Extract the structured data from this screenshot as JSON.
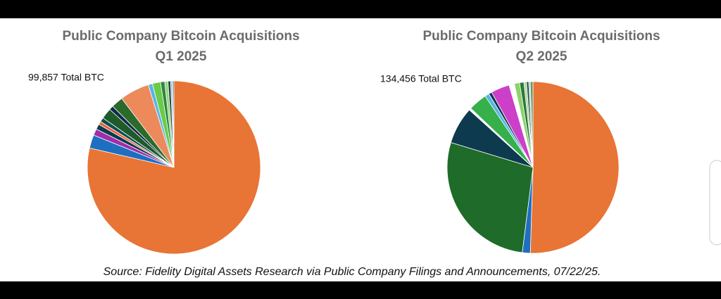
{
  "chart_data": [
    {
      "type": "pie",
      "title": "Public Company Bitcoin Acquisitions",
      "subtitle": "Q1 2025",
      "annotation": "99,857 Total BTC",
      "values": [
        78.6,
        2.5,
        1.2,
        1.0,
        0.6,
        0.8,
        2.0,
        0.8,
        2.2,
        5.5,
        0.8,
        1.5,
        0.8,
        0.6,
        0.5,
        0.4,
        0.2
      ],
      "colors": [
        "#e87435",
        "#1f6fc1",
        "#a02ea8",
        "#0d3b4f",
        "#e8603c",
        "#0a4f4f",
        "#1e5a2a",
        "#102f45",
        "#2a6a2a",
        "#ec8a5c",
        "#5ab4e6",
        "#6acb4a",
        "#2f8a3a",
        "#9ad18a",
        "#1f4f2f",
        "#a8c8e8",
        "#3a3a3a"
      ]
    },
    {
      "type": "pie",
      "title": "Public Company Bitcoin Acquisitions",
      "subtitle": "Q2 2025",
      "annotation": "134,456 Total BTC",
      "values": [
        50.5,
        1.5,
        27.7,
        7.0,
        0.4,
        3.5,
        0.8,
        0.6,
        3.5,
        1.0,
        1.0,
        0.8,
        0.5,
        0.4,
        0.3,
        0.5
      ],
      "colors": [
        "#e87435",
        "#1f6fc1",
        "#1e6b2a",
        "#0e3a4f",
        "#ffffff",
        "#35b04a",
        "#5ab4e6",
        "#0d3b4f",
        "#cc3fc8",
        "#ffffff",
        "#8fd06a",
        "#2a7a3a",
        "#b4d8a4",
        "#1a4a2a",
        "#a8c8e8",
        "#6a9a5a"
      ]
    }
  ],
  "source": "Source: Fidelity Digital Assets Research via Public Company Filings and Announcements, 07/22/25."
}
